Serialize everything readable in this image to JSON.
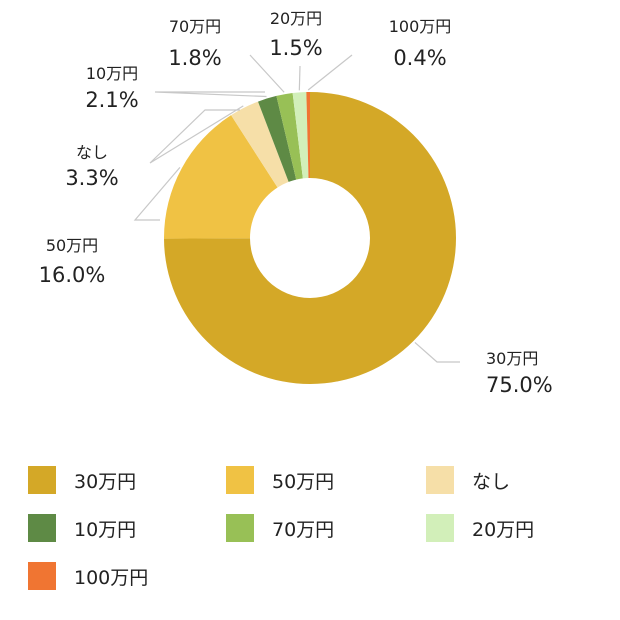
{
  "chart_data": {
    "type": "pie",
    "variant": "donut",
    "slices": [
      {
        "label": "30万円",
        "value": 75.0,
        "value_label": "75.0%",
        "color": "#D4A827"
      },
      {
        "label": "50万円",
        "value": 16.0,
        "value_label": "16.0%",
        "color": "#F0C244"
      },
      {
        "label": "なし",
        "value": 3.3,
        "value_label": "3.3%",
        "color": "#F6DFA8"
      },
      {
        "label": "10万円",
        "value": 2.1,
        "value_label": "2.1%",
        "color": "#5E8A45"
      },
      {
        "label": "70万円",
        "value": 1.8,
        "value_label": "1.8%",
        "color": "#98C056"
      },
      {
        "label": "20万円",
        "value": 1.5,
        "value_label": "1.5%",
        "color": "#D2EFB9"
      },
      {
        "label": "100万円",
        "value": 0.4,
        "value_label": "0.4%",
        "color": "#F07532"
      }
    ],
    "legend": {
      "position": "bottom",
      "order": [
        "30万円",
        "50万円",
        "なし",
        "10万円",
        "70万円",
        "20万円",
        "100万円"
      ]
    }
  }
}
